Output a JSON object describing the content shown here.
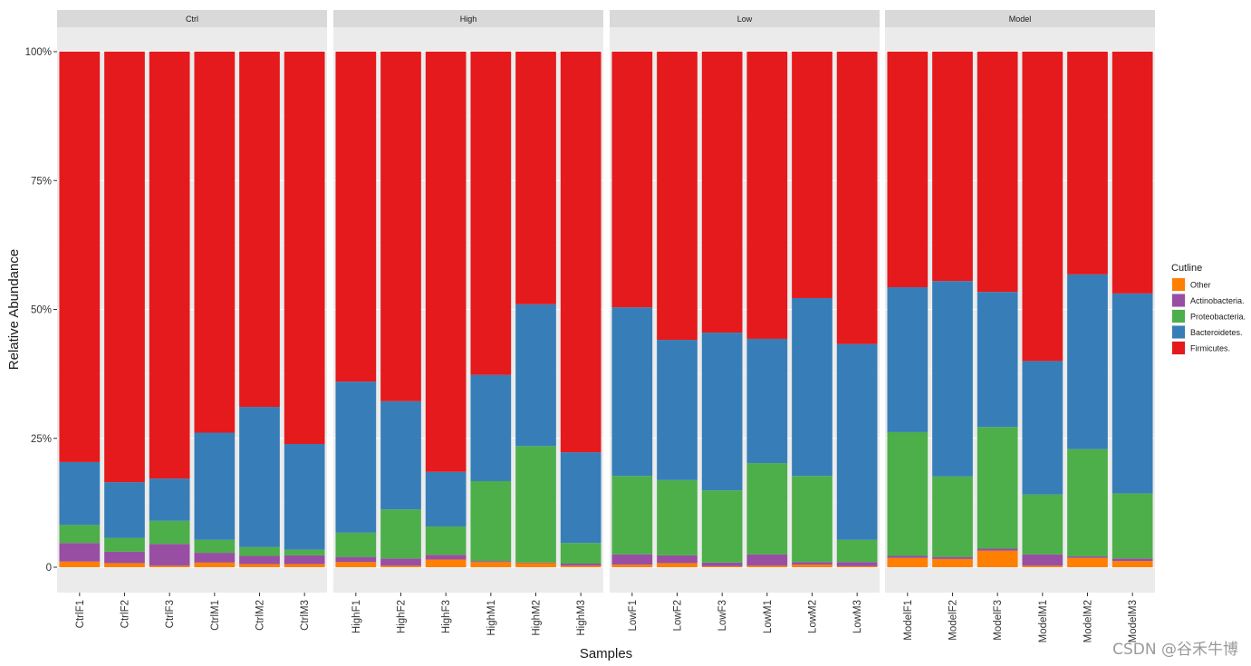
{
  "chart_data": {
    "type": "bar",
    "stacked": true,
    "xlabel": "Samples",
    "ylabel": "Relative Abundance",
    "ylim": [
      0,
      1
    ],
    "yticks": [
      {
        "value": 0,
        "label": "0"
      },
      {
        "value": 0.25,
        "label": "25%"
      },
      {
        "value": 0.5,
        "label": "50%"
      },
      {
        "value": 0.75,
        "label": "75%"
      },
      {
        "value": 1,
        "label": "100%"
      }
    ],
    "legend": {
      "title": "Cutline",
      "position": "right",
      "items": [
        {
          "name": "Other",
          "color": "#FF7F00"
        },
        {
          "name": "Actinobacteria.",
          "color": "#984EA3"
        },
        {
          "name": "Proteobacteria.",
          "color": "#4DAF4A"
        },
        {
          "name": "Bacteroidetes.",
          "color": "#377EB8"
        },
        {
          "name": "Firmicutes.",
          "color": "#E41A1C"
        }
      ]
    },
    "stack_order": [
      "Other",
      "Actinobacteria.",
      "Proteobacteria.",
      "Bacteroidetes.",
      "Firmicutes."
    ],
    "facets": [
      {
        "name": "Ctrl",
        "samples": [
          {
            "name": "CtrlF1",
            "values": [
              0.011,
              0.036,
              0.035,
              0.122,
              0.796
            ]
          },
          {
            "name": "CtrlF2",
            "values": [
              0.008,
              0.022,
              0.027,
              0.108,
              0.835
            ]
          },
          {
            "name": "CtrlF3",
            "values": [
              0.003,
              0.042,
              0.045,
              0.082,
              0.828
            ]
          },
          {
            "name": "CtrlM1",
            "values": [
              0.009,
              0.019,
              0.025,
              0.208,
              0.739
            ]
          },
          {
            "name": "CtrlM2",
            "values": [
              0.006,
              0.016,
              0.017,
              0.272,
              0.689
            ]
          },
          {
            "name": "CtrlM3",
            "values": [
              0.006,
              0.017,
              0.011,
              0.205,
              0.761
            ]
          }
        ]
      },
      {
        "name": "High",
        "samples": [
          {
            "name": "HighF1",
            "values": [
              0.01,
              0.01,
              0.047,
              0.293,
              0.64
            ]
          },
          {
            "name": "HighF2",
            "values": [
              0.003,
              0.014,
              0.095,
              0.21,
              0.678
            ]
          },
          {
            "name": "HighF3",
            "values": [
              0.015,
              0.009,
              0.055,
              0.106,
              0.815
            ]
          },
          {
            "name": "HighM1",
            "values": [
              0.01,
              0.002,
              0.155,
              0.206,
              0.627
            ]
          },
          {
            "name": "HighM2",
            "values": [
              0.008,
              0.001,
              0.226,
              0.275,
              0.49
            ]
          },
          {
            "name": "HighM3",
            "values": [
              0.003,
              0.004,
              0.04,
              0.176,
              0.777
            ]
          }
        ]
      },
      {
        "name": "Low",
        "samples": [
          {
            "name": "LowF1",
            "values": [
              0.005,
              0.02,
              0.152,
              0.327,
              0.496
            ]
          },
          {
            "name": "LowF2",
            "values": [
              0.008,
              0.015,
              0.146,
              0.272,
              0.559
            ]
          },
          {
            "name": "LowF3",
            "values": [
              0.002,
              0.007,
              0.14,
              0.306,
              0.545
            ]
          },
          {
            "name": "LowM1",
            "values": [
              0.003,
              0.022,
              0.177,
              0.241,
              0.557
            ]
          },
          {
            "name": "LowM2",
            "values": [
              0.005,
              0.005,
              0.167,
              0.345,
              0.478
            ]
          },
          {
            "name": "LowM3",
            "values": [
              0.002,
              0.008,
              0.043,
              0.38,
              0.567
            ]
          }
        ]
      },
      {
        "name": "Model",
        "samples": [
          {
            "name": "ModelF1",
            "values": [
              0.018,
              0.004,
              0.24,
              0.281,
              0.457
            ]
          },
          {
            "name": "ModelF2",
            "values": [
              0.016,
              0.004,
              0.156,
              0.379,
              0.445
            ]
          },
          {
            "name": "ModelF3",
            "values": [
              0.032,
              0.004,
              0.236,
              0.262,
              0.466
            ]
          },
          {
            "name": "ModelM1",
            "values": [
              0.003,
              0.022,
              0.116,
              0.259,
              0.6
            ]
          },
          {
            "name": "ModelM2",
            "values": [
              0.018,
              0.003,
              0.208,
              0.339,
              0.432
            ]
          },
          {
            "name": "ModelM3",
            "values": [
              0.012,
              0.005,
              0.126,
              0.388,
              0.469
            ]
          }
        ]
      }
    ]
  },
  "watermark": "CSDN @谷禾牛博"
}
